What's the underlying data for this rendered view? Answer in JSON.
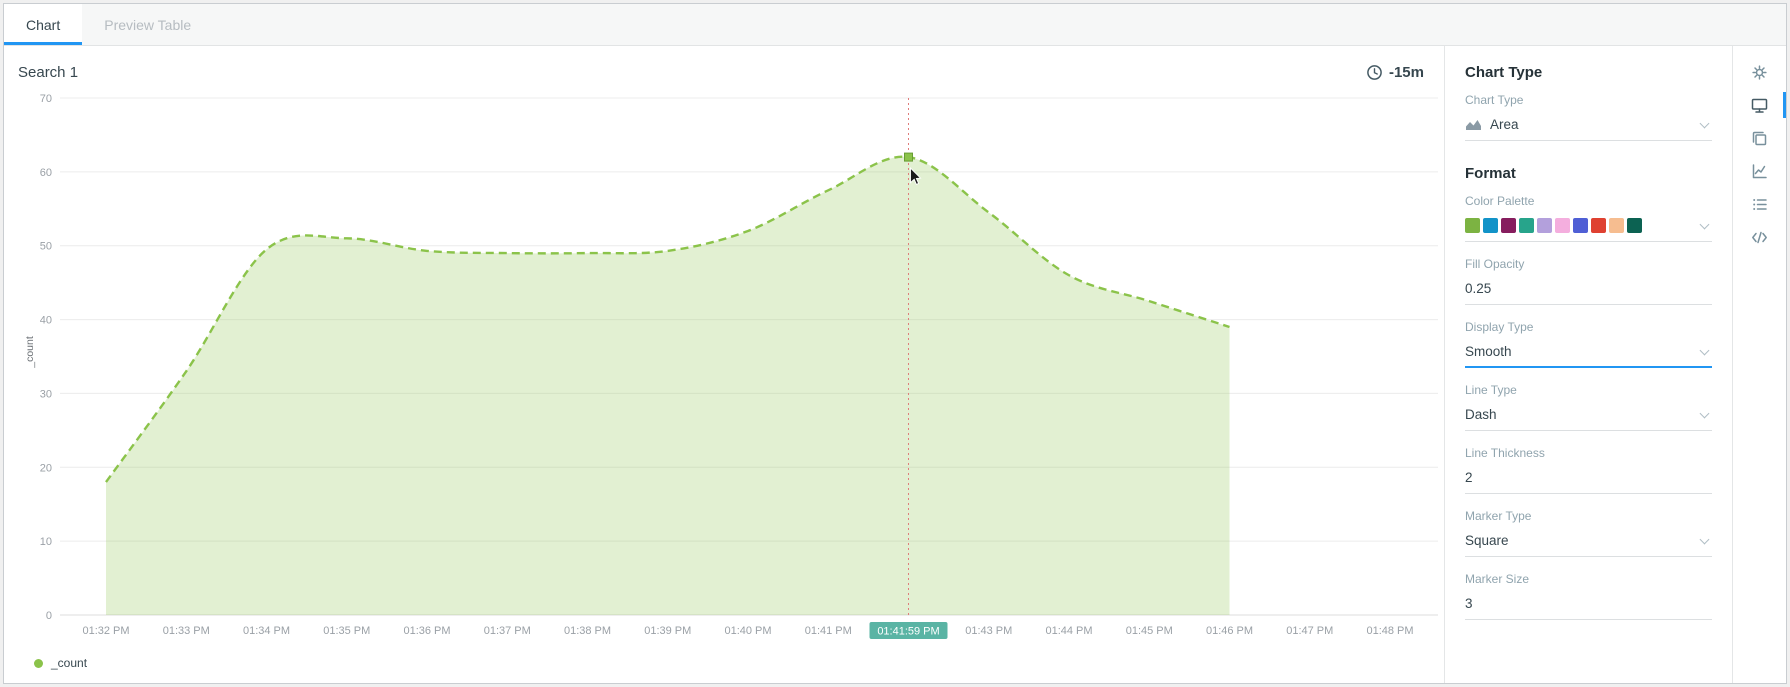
{
  "tabs": {
    "chart": "Chart",
    "preview_table": "Preview Table"
  },
  "chart_header": {
    "title": "Search 1",
    "time_range": "-15m"
  },
  "chart_data": {
    "type": "area",
    "title": "Search 1",
    "ylabel": "_count",
    "ylim": [
      0,
      70
    ],
    "yticks": [
      0,
      10,
      20,
      30,
      40,
      50,
      60,
      70
    ],
    "x_labels": [
      "01:32 PM",
      "01:33 PM",
      "01:34 PM",
      "01:35 PM",
      "01:36 PM",
      "01:37 PM",
      "01:38 PM",
      "01:39 PM",
      "01:40 PM",
      "01:41 PM",
      "01:42 PM",
      "01:43 PM",
      "01:44 PM",
      "01:45 PM",
      "01:46 PM",
      "01:47 PM",
      "01:48 PM"
    ],
    "series": [
      {
        "name": "_count",
        "color": "#8bc34a",
        "fill_opacity": 0.25,
        "line_style": "dash",
        "display_type": "smooth",
        "values": [
          18,
          33,
          49.5,
          51,
          49.3,
          49,
          49,
          49.3,
          52,
          57.5,
          62,
          54.5,
          46,
          42.5,
          39
        ]
      }
    ],
    "hover": {
      "index": 10,
      "label": "01:41:59 PM",
      "value": 62,
      "badge_color": "#5ab4a4",
      "line_color": "#e07b7b",
      "marker": "square"
    },
    "legend": [
      {
        "label": "_count",
        "color": "#8bc34a"
      }
    ],
    "grid": true,
    "legend_position": "bottom-left"
  },
  "panel": {
    "heading_chart_type": "Chart Type",
    "chart_type": {
      "label": "Chart Type",
      "value": "Area"
    },
    "heading_format": "Format",
    "color_palette": {
      "label": "Color Palette",
      "colors": [
        "#7cb342",
        "#1293c8",
        "#861d5e",
        "#27a48b",
        "#b3a0dc",
        "#f4aede",
        "#4f5fd5",
        "#df4131",
        "#f6bd90",
        "#0c6252"
      ]
    },
    "fill_opacity": {
      "label": "Fill Opacity",
      "value": "0.25"
    },
    "display_type": {
      "label": "Display Type",
      "value": "Smooth",
      "focused": true
    },
    "line_type": {
      "label": "Line Type",
      "value": "Dash"
    },
    "line_thickness": {
      "label": "Line Thickness",
      "value": "2"
    },
    "marker_type": {
      "label": "Marker Type",
      "value": "Square"
    },
    "marker_size": {
      "label": "Marker Size",
      "value": "3"
    }
  },
  "toolbar_icons": [
    {
      "name": "settings-gear-icon",
      "active": false
    },
    {
      "name": "display-monitor-icon",
      "active": true
    },
    {
      "name": "copy-icon",
      "active": false
    },
    {
      "name": "axes-chart-icon",
      "active": false
    },
    {
      "name": "legend-list-icon",
      "active": false
    },
    {
      "name": "code-icon",
      "active": false
    }
  ],
  "colors": {
    "accent_blue": "#2196f3",
    "series_green": "#8bc34a",
    "hover_badge_teal": "#5ab4a4",
    "hover_line_red": "#e07b7b"
  }
}
